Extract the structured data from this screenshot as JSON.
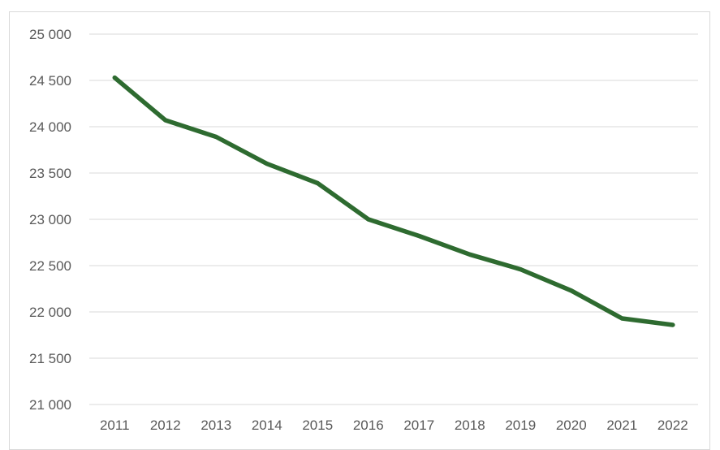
{
  "chart_data": {
    "type": "line",
    "categories": [
      "2011",
      "2012",
      "2013",
      "2014",
      "2015",
      "2016",
      "2017",
      "2018",
      "2019",
      "2020",
      "2021",
      "2022"
    ],
    "series": [
      {
        "values": [
          24530,
          24070,
          23890,
          23600,
          23390,
          23000,
          22820,
          22620,
          22460,
          22230,
          21930,
          21860
        ],
        "color": "#2e6b30"
      }
    ],
    "y_ticks": [
      "21 000",
      "21 500",
      "22 000",
      "22 500",
      "23 000",
      "23 500",
      "24 000",
      "24 500",
      "25 000"
    ],
    "ylim": [
      21000,
      25000
    ],
    "grid": true,
    "legend": "none",
    "title": "",
    "xlabel": "",
    "ylabel": ""
  }
}
